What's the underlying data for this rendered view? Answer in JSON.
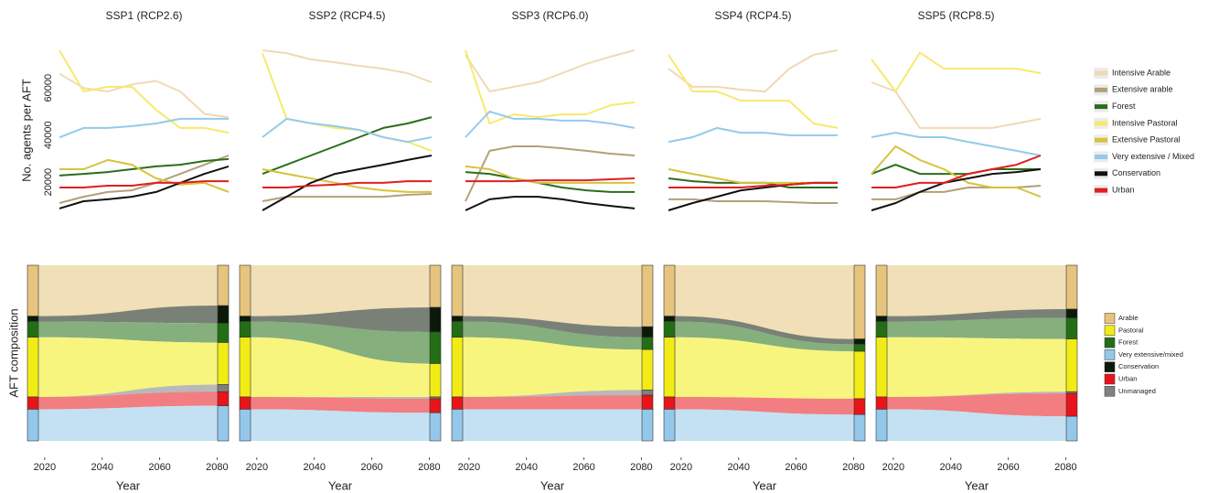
{
  "chart_data": [
    {
      "type": "line",
      "title": "SSP1 (RCP2.6)",
      "ylabel": "No. agents per AFT",
      "x": [
        2015,
        2025,
        2035,
        2045,
        2055,
        2065,
        2075,
        2085
      ],
      "xlim": [
        2015,
        2085
      ],
      "ylim": [
        8000,
        76000
      ],
      "yticks": [
        20000,
        40000,
        60000
      ],
      "series": [
        {
          "color": "#f0d9b5",
          "values": [
            66000,
            60000,
            58500,
            61500,
            63000,
            58500,
            49000,
            47500
          ]
        },
        {
          "color": "#b3a07a",
          "values": [
            11100,
            13800,
            15800,
            16500,
            19700,
            23500,
            27400,
            31300
          ]
        },
        {
          "color": "#2a6e1a",
          "values": [
            22800,
            23500,
            24300,
            25500,
            26700,
            27400,
            29000,
            29800
          ]
        },
        {
          "color": "#f7ea6a",
          "values": [
            76000,
            58500,
            60500,
            60500,
            50700,
            43000,
            43000,
            41000
          ]
        },
        {
          "color": "#d6c33c",
          "values": [
            25500,
            25500,
            29400,
            27400,
            21600,
            18900,
            19700,
            15800
          ]
        },
        {
          "color": "#93cbeb",
          "values": [
            39000,
            43000,
            43000,
            43800,
            44900,
            46900,
            46900,
            46900
          ]
        },
        {
          "color": "#111111",
          "values": [
            8800,
            11900,
            12700,
            13800,
            15800,
            19700,
            23500,
            26700
          ]
        },
        {
          "color": "#e01e1e",
          "values": [
            17700,
            17700,
            18500,
            18500,
            19700,
            19700,
            20400,
            20400
          ]
        }
      ]
    },
    {
      "type": "line",
      "title": "SSP2 (RCP4.5)",
      "x": [
        2015,
        2025,
        2035,
        2045,
        2055,
        2065,
        2075,
        2085
      ],
      "xlim": [
        2015,
        2085
      ],
      "ylim": [
        8000,
        76000
      ],
      "series": [
        {
          "color": "#f0d9b5",
          "values": [
            76000,
            74800,
            72100,
            70900,
            69400,
            68200,
            66300,
            62400
          ]
        },
        {
          "color": "#b3a07a",
          "values": [
            11900,
            13800,
            13800,
            13800,
            13800,
            13800,
            14600,
            15000
          ]
        },
        {
          "color": "#2a6e1a",
          "values": [
            23500,
            27400,
            31300,
            35200,
            39100,
            43000,
            44900,
            47600
          ]
        },
        {
          "color": "#f7ea6a",
          "values": [
            74800,
            46900,
            45000,
            43000,
            42200,
            39100,
            37100,
            33300
          ]
        },
        {
          "color": "#d6c33c",
          "values": [
            25500,
            23500,
            21600,
            19700,
            17700,
            16500,
            15800,
            15800
          ]
        },
        {
          "color": "#93cbeb",
          "values": [
            39100,
            46900,
            45000,
            43800,
            42200,
            39100,
            37100,
            39100
          ]
        },
        {
          "color": "#111111",
          "values": [
            8000,
            13800,
            19700,
            23500,
            25500,
            27400,
            29400,
            31300
          ]
        },
        {
          "color": "#e01e1e",
          "values": [
            17700,
            17700,
            18500,
            18900,
            19700,
            19700,
            20400,
            20400
          ]
        }
      ]
    },
    {
      "type": "line",
      "title": "SSP3 (RCP6.0)",
      "x": [
        2015,
        2025,
        2035,
        2045,
        2055,
        2065,
        2075,
        2085
      ],
      "xlim": [
        2015,
        2085
      ],
      "ylim": [
        8000,
        76000
      ],
      "series": [
        {
          "color": "#f0d9b5",
          "values": [
            74100,
            58500,
            60500,
            62400,
            66300,
            70200,
            73300,
            76000
          ]
        },
        {
          "color": "#b3a07a",
          "values": [
            11900,
            33300,
            35200,
            35200,
            34400,
            33300,
            32100,
            31300
          ]
        },
        {
          "color": "#2a6e1a",
          "values": [
            24300,
            23500,
            21600,
            19700,
            17700,
            16500,
            15800,
            15800
          ]
        },
        {
          "color": "#f7ea6a",
          "values": [
            76000,
            44900,
            48800,
            47600,
            48800,
            48800,
            52700,
            53900
          ]
        },
        {
          "color": "#d6c33c",
          "values": [
            26700,
            25500,
            21600,
            19700,
            19700,
            19700,
            19700,
            19700
          ]
        },
        {
          "color": "#93cbeb",
          "values": [
            39100,
            50000,
            46900,
            46900,
            46100,
            46100,
            44900,
            43000
          ]
        },
        {
          "color": "#111111",
          "values": [
            8000,
            12700,
            13800,
            13800,
            12700,
            11100,
            9900,
            8800
          ]
        },
        {
          "color": "#e01e1e",
          "values": [
            20400,
            20400,
            20400,
            20800,
            20800,
            20800,
            21200,
            21600
          ]
        }
      ]
    },
    {
      "type": "line",
      "title": "SSP4 (RCP4.5)",
      "x": [
        2015,
        2025,
        2035,
        2045,
        2055,
        2065,
        2075,
        2085
      ],
      "xlim": [
        2015,
        2085
      ],
      "ylim": [
        8000,
        76000
      ],
      "series": [
        {
          "color": "#f0d9b5",
          "values": [
            68200,
            60500,
            60500,
            59300,
            58500,
            68200,
            74100,
            76000
          ]
        },
        {
          "color": "#b3a07a",
          "values": [
            12700,
            12700,
            11900,
            11900,
            11900,
            11500,
            11100,
            11100
          ]
        },
        {
          "color": "#2a6e1a",
          "values": [
            21600,
            20400,
            19700,
            19700,
            19700,
            17700,
            17700,
            17700
          ]
        },
        {
          "color": "#f7ea6a",
          "values": [
            74100,
            58500,
            58500,
            54600,
            54600,
            54600,
            44900,
            43000
          ]
        },
        {
          "color": "#d6c33c",
          "values": [
            25500,
            23500,
            21600,
            19700,
            19700,
            19700,
            19700,
            19700
          ]
        },
        {
          "color": "#93cbeb",
          "values": [
            37100,
            39100,
            43000,
            41000,
            41000,
            39900,
            39900,
            39900
          ]
        },
        {
          "color": "#111111",
          "values": [
            8000,
            11100,
            13800,
            16500,
            17700,
            18900,
            19700,
            19700
          ]
        },
        {
          "color": "#e01e1e",
          "values": [
            17700,
            17700,
            17700,
            17700,
            18500,
            18900,
            19700,
            19700
          ]
        }
      ]
    },
    {
      "type": "line",
      "title": "SSP5 (RCP8.5)",
      "x": [
        2015,
        2025,
        2035,
        2045,
        2055,
        2065,
        2075,
        2085
      ],
      "xlim": [
        2015,
        2085
      ],
      "ylim": [
        8000,
        76000
      ],
      "series": [
        {
          "name": "Intensive Arable",
          "color": "#f0d9b5",
          "values": [
            62400,
            58500,
            43000,
            43000,
            43000,
            43000,
            44900,
            46900
          ]
        },
        {
          "name": "Extensive arable",
          "color": "#b3a07a",
          "values": [
            12700,
            12700,
            15800,
            15800,
            17700,
            17700,
            17700,
            18500
          ]
        },
        {
          "name": "Forest",
          "color": "#2a6e1a",
          "values": [
            23500,
            27400,
            23500,
            23500,
            23500,
            25500,
            25500,
            25500
          ]
        },
        {
          "name": "Intensive Pastoral",
          "color": "#f7ea6a",
          "values": [
            72100,
            58500,
            75000,
            68200,
            68200,
            68200,
            68200,
            66300
          ]
        },
        {
          "name": "Extensive Pastoral",
          "color": "#d6c33c",
          "values": [
            23500,
            35200,
            29400,
            25500,
            19700,
            17700,
            17700,
            13800
          ]
        },
        {
          "name": "Very extensive / Mixed",
          "color": "#93cbeb",
          "values": [
            39100,
            41000,
            39100,
            39100,
            37100,
            35200,
            33300,
            31300
          ]
        },
        {
          "name": "Conservation",
          "color": "#111111",
          "values": [
            8000,
            11100,
            15800,
            19700,
            21600,
            23500,
            24300,
            25500
          ]
        },
        {
          "name": "Urban",
          "color": "#e01e1e",
          "values": [
            17700,
            17700,
            19700,
            19700,
            23500,
            25500,
            27400,
            31300
          ]
        }
      ]
    },
    {
      "type": "alluvial",
      "ylabel": "AFT composition",
      "xlabel": "Year",
      "xlim": [
        2014,
        2084
      ],
      "xticks": [
        2020,
        2040,
        2060,
        2080
      ],
      "colors": [
        "#e6c47e",
        "#f2ec16",
        "#236e14",
        "#94c8ea",
        "#0b1a08",
        "#e8141a",
        "#808080"
      ],
      "series": [
        {
          "values": [
            29,
            34,
            9,
            18,
            3,
            7,
            0
          ]
        },
        {
          "values": [
            23,
            24,
            11,
            20,
            10,
            8,
            4
          ]
        }
      ]
    },
    {
      "type": "alluvial",
      "xlabel": "Year",
      "xlim": [
        2014,
        2084
      ],
      "xticks": [
        2020,
        2040,
        2060,
        2080
      ],
      "colors": [
        "#e6c47e",
        "#f2ec16",
        "#236e14",
        "#94c8ea",
        "#0b1a08",
        "#e8141a",
        "#808080"
      ],
      "series": [
        {
          "values": [
            29,
            34,
            9,
            18,
            3,
            7,
            0
          ]
        },
        {
          "values": [
            24,
            19,
            18,
            16,
            14,
            8,
            1
          ]
        }
      ]
    },
    {
      "type": "alluvial",
      "xlabel": "Year",
      "xlim": [
        2014,
        2084
      ],
      "xticks": [
        2020,
        2040,
        2060,
        2080
      ],
      "colors": [
        "#e6c47e",
        "#f2ec16",
        "#236e14",
        "#94c8ea",
        "#0b1a08",
        "#e8141a",
        "#808080"
      ],
      "series": [
        {
          "values": [
            29,
            34,
            9,
            18,
            3,
            7,
            0
          ]
        },
        {
          "values": [
            35,
            23,
            7,
            18,
            6,
            8,
            3
          ]
        }
      ]
    },
    {
      "type": "alluvial",
      "xlabel": "Year",
      "xlim": [
        2014,
        2084
      ],
      "xticks": [
        2020,
        2040,
        2060,
        2080
      ],
      "colors": [
        "#e6c47e",
        "#f2ec16",
        "#236e14",
        "#94c8ea",
        "#0b1a08",
        "#e8141a",
        "#808080"
      ],
      "series": [
        {
          "values": [
            29,
            34,
            9,
            18,
            3,
            7,
            0
          ]
        },
        {
          "values": [
            42,
            27,
            4,
            15,
            3,
            9,
            0
          ]
        }
      ]
    },
    {
      "type": "alluvial",
      "xlabel": "Year",
      "xlim": [
        2014,
        2084
      ],
      "xticks": [
        2020,
        2040,
        2060,
        2080
      ],
      "categories": [
        "Arable",
        "Pastoral",
        "Forest",
        "Very extensive/mixed",
        "Conservation",
        "Urban",
        "Unmanaged"
      ],
      "colors": [
        "#e6c47e",
        "#f2ec16",
        "#236e14",
        "#94c8ea",
        "#0b1a08",
        "#e8141a",
        "#808080"
      ],
      "series": [
        {
          "values": [
            29,
            34,
            9,
            18,
            3,
            7,
            0
          ]
        },
        {
          "values": [
            25,
            30,
            12,
            14,
            5,
            13,
            1
          ]
        }
      ]
    }
  ]
}
